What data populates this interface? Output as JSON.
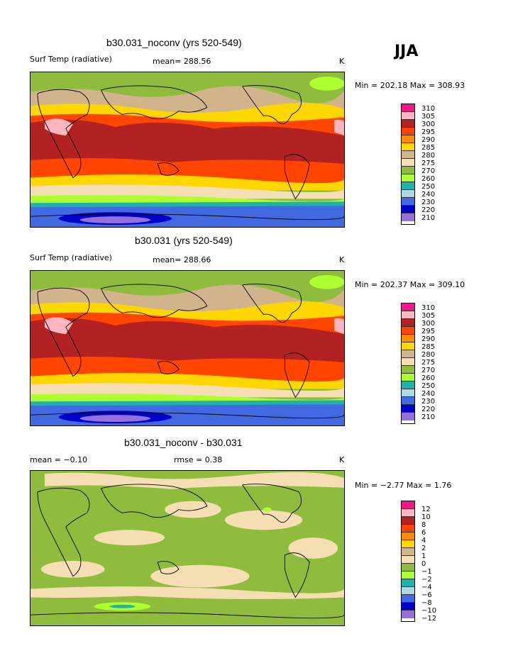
{
  "season": "JJA",
  "panels": [
    {
      "title": "b30.031_noconv (yrs 520-549)",
      "left_label": "Surf Temp (radiative)",
      "mid_label": "mean= 288.56",
      "mid2_label": "",
      "unit": "K",
      "minmax": "Min = 202.18 Max = 308.93",
      "levels": [
        "310",
        "305",
        "300",
        "295",
        "290",
        "285",
        "280",
        "275",
        "270",
        "260",
        "250",
        "240",
        "230",
        "220",
        "210"
      ]
    },
    {
      "title": "b30.031 (yrs 520-549)",
      "left_label": "Surf Temp (radiative)",
      "mid_label": "mean= 288.66",
      "mid2_label": "",
      "unit": "K",
      "minmax": "Min = 202.37 Max = 309.10",
      "levels": [
        "310",
        "305",
        "300",
        "295",
        "290",
        "285",
        "280",
        "275",
        "270",
        "260",
        "250",
        "240",
        "230",
        "220",
        "210"
      ]
    },
    {
      "title": "b30.031_noconv - b30.031",
      "left_label": "mean =   −0.10",
      "mid_label": "rmse =    0.38",
      "mid2_label": "",
      "unit": "K",
      "minmax": "Min =  −2.77 Max =    1.76",
      "levels": [
        "12",
        "10",
        "8",
        "6",
        "4",
        "2",
        "1",
        "0",
        "−1",
        "−2",
        "−4",
        "−6",
        "−8",
        "−10",
        "−12"
      ]
    }
  ],
  "colors": {
    "scale": [
      "#f0198c",
      "#ffb6c1",
      "#b22222",
      "#ff4500",
      "#ff8c00",
      "#ffd700",
      "#d2b48c",
      "#f5deb3",
      "#8fbc3c",
      "#adff2f",
      "#20b2aa",
      "#add8e6",
      "#4169e1",
      "#0000cd",
      "#9370db"
    ]
  }
}
